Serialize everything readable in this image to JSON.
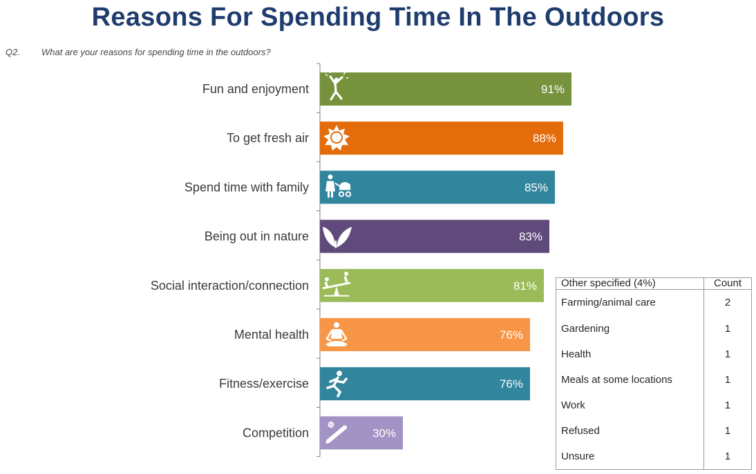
{
  "title": "Reasons For Spending Time In The Outdoors",
  "question": {
    "number": "Q2.",
    "text": "What are your reasons for spending time in the outdoors?"
  },
  "chart_data": {
    "type": "bar",
    "orientation": "horizontal",
    "categories": [
      "Fun and enjoyment",
      "To get fresh air",
      "Spend time with family",
      "Being out in nature",
      "Social interaction/connection",
      "Mental health",
      "Fitness/exercise",
      "Competition"
    ],
    "values": [
      91,
      88,
      85,
      83,
      81,
      76,
      76,
      30
    ],
    "value_labels": [
      "91%",
      "88%",
      "85%",
      "83%",
      "81%",
      "76%",
      "76%",
      "30%"
    ],
    "colors": [
      "#77923c",
      "#e46c0a",
      "#31859c",
      "#604a7b",
      "#9bbb59",
      "#f79646",
      "#31859c",
      "#a293c4"
    ],
    "icons": [
      "celebrating-person-icon",
      "sun-icon",
      "parent-with-stroller-icon",
      "leaf-icon",
      "seesaw-icon",
      "meditation-icon",
      "runner-icon",
      "baseball-bat-icon"
    ],
    "xlim": [
      0,
      100
    ],
    "unit": "%",
    "grid": false
  },
  "other_table": {
    "header": {
      "label": "Other specified (4%)",
      "count": "Count"
    },
    "rows": [
      {
        "label": "Farming/animal care",
        "count": "2"
      },
      {
        "label": "Gardening",
        "count": "1"
      },
      {
        "label": "Health",
        "count": "1"
      },
      {
        "label": "Meals at some locations",
        "count": "1"
      },
      {
        "label": "Work",
        "count": "1"
      },
      {
        "label": "Refused",
        "count": "1"
      },
      {
        "label": "Unsure",
        "count": "1"
      }
    ]
  }
}
